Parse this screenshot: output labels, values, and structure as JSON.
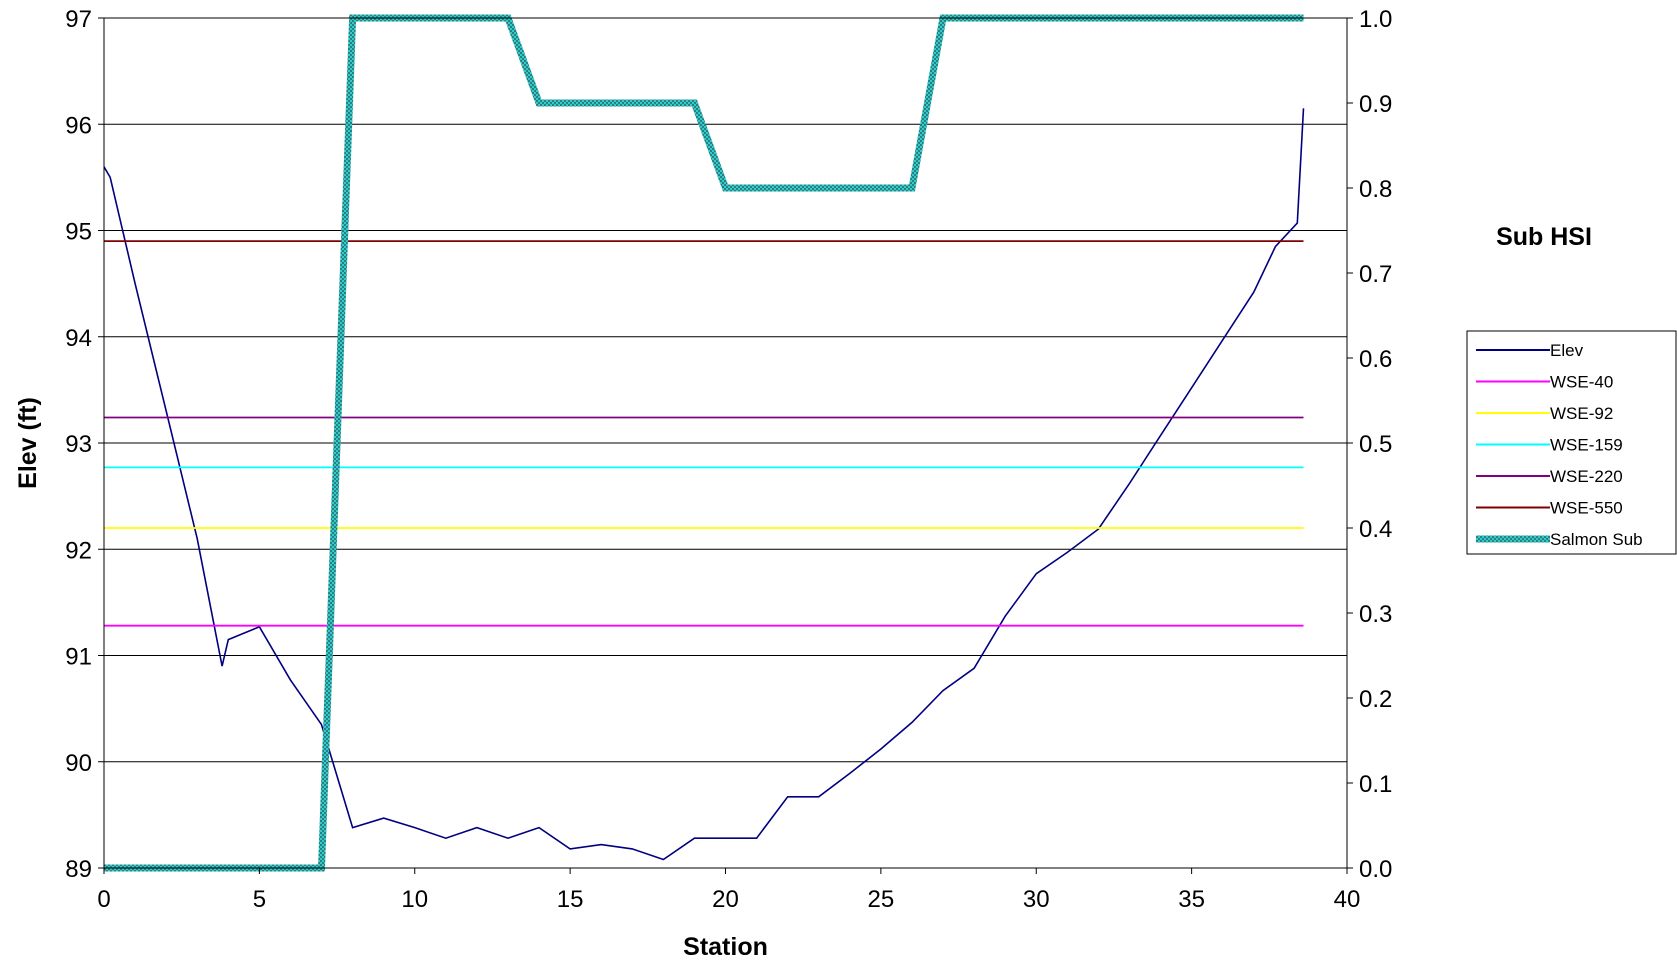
{
  "chart_data": {
    "type": "line",
    "xlabel": "Station",
    "ylabel": "Elev (ft)",
    "y2label": "Sub HSI",
    "xlim": [
      0,
      40
    ],
    "ylim": [
      89,
      97
    ],
    "y2lim": [
      0,
      1
    ],
    "xticks": [
      "0",
      "5",
      "10",
      "15",
      "20",
      "25",
      "30",
      "35",
      "40"
    ],
    "yticks": [
      "89",
      "90",
      "91",
      "92",
      "93",
      "94",
      "95",
      "96",
      "97"
    ],
    "y2ticks": [
      "0.0",
      "0.1",
      "0.2",
      "0.3",
      "0.4",
      "0.5",
      "0.6",
      "0.7",
      "0.8",
      "0.9",
      "1.0"
    ],
    "grid": "horizontal",
    "legend_position": "right",
    "series": [
      {
        "name": "Elev",
        "axis": "left",
        "color": "#000080",
        "x": [
          0,
          0.2,
          1,
          2,
          3,
          3.8,
          4,
          5,
          6,
          7,
          8,
          9,
          10,
          11,
          12,
          13,
          14,
          15,
          16,
          17,
          18,
          19,
          20,
          21,
          22,
          23,
          24,
          25,
          26,
          27,
          28,
          29,
          30,
          31,
          32,
          33,
          34,
          35,
          36,
          37,
          37.7,
          38.4,
          38.6
        ],
        "y": [
          95.6,
          95.5,
          94.5,
          93.3,
          92.1,
          90.9,
          91.15,
          91.27,
          90.77,
          90.35,
          89.38,
          89.47,
          89.38,
          89.28,
          89.38,
          89.28,
          89.38,
          89.18,
          89.22,
          89.18,
          89.08,
          89.28,
          89.28,
          89.28,
          89.67,
          89.67,
          89.89,
          90.12,
          90.37,
          90.67,
          90.88,
          91.37,
          91.77,
          91.97,
          92.19,
          92.62,
          93.07,
          93.52,
          93.97,
          94.42,
          94.85,
          95.07,
          96.15
        ]
      },
      {
        "name": "WSE-40",
        "axis": "left",
        "color": "#FF00FF",
        "x": [
          0,
          38.6
        ],
        "y": [
          91.28,
          91.28
        ]
      },
      {
        "name": "WSE-92",
        "axis": "left",
        "color": "#FFFF00",
        "x": [
          0,
          38.6
        ],
        "y": [
          92.2,
          92.2
        ]
      },
      {
        "name": "WSE-159",
        "axis": "left",
        "color": "#00FFFF",
        "x": [
          0,
          38.6
        ],
        "y": [
          92.77,
          92.77
        ]
      },
      {
        "name": "WSE-220",
        "axis": "left",
        "color": "#800080",
        "x": [
          0,
          38.6
        ],
        "y": [
          93.24,
          93.24
        ]
      },
      {
        "name": "WSE-550",
        "axis": "left",
        "color": "#800000",
        "x": [
          0,
          38.6
        ],
        "y": [
          94.9,
          94.9
        ]
      },
      {
        "name": "Salmon Sub",
        "axis": "right",
        "color": "#33CCCC",
        "x": [
          0,
          7,
          8,
          13,
          14,
          19,
          20,
          26,
          27,
          38.6
        ],
        "y": [
          0,
          0,
          1,
          1,
          0.9,
          0.9,
          0.8,
          0.8,
          1,
          1
        ]
      }
    ]
  }
}
